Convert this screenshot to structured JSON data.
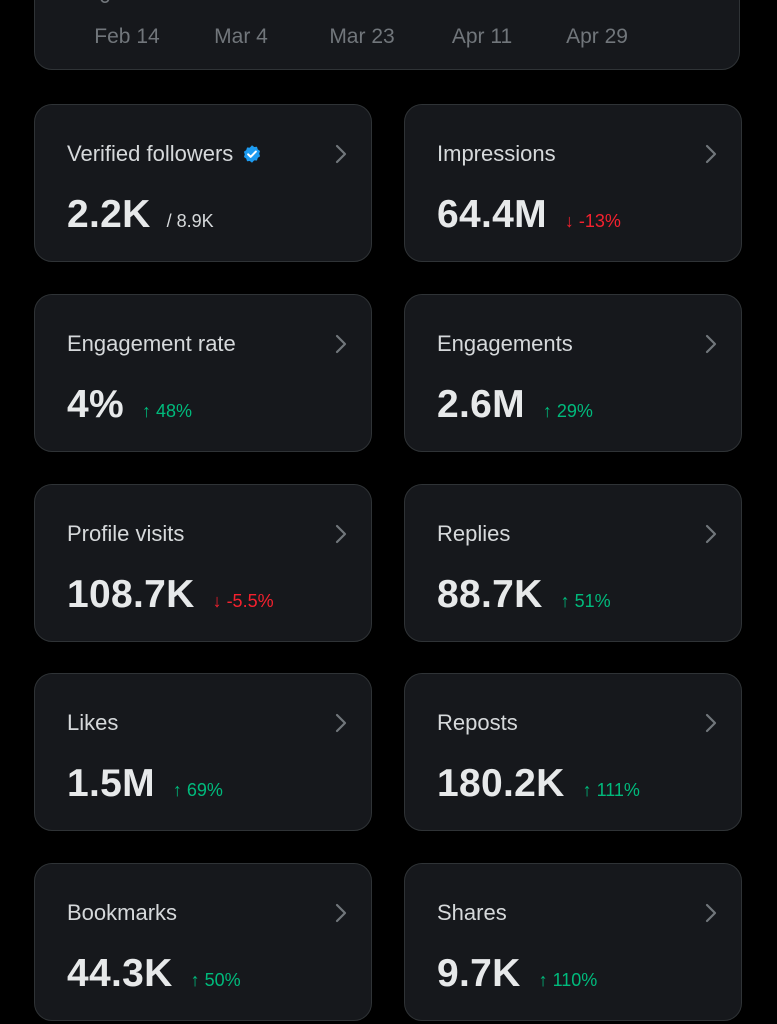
{
  "colors": {
    "background": "#000000",
    "card": "#16181c",
    "border": "#2f3336",
    "up": "#00ba7c",
    "down": "#f4212e",
    "verified": "#1d9bf0",
    "chart_line": "#1d9bf0"
  },
  "chart": {
    "y_tick": "0",
    "x_ticks": [
      "Feb 14",
      "Mar 4",
      "Mar 23",
      "Apr 11",
      "Apr 29"
    ]
  },
  "stats": [
    {
      "label": "Verified followers",
      "value": "2.2K",
      "sub": "/ 8.9K",
      "change": "",
      "direction": "",
      "verified": true
    },
    {
      "label": "Impressions",
      "value": "64.4M",
      "sub": "",
      "change": "↓ -13%",
      "direction": "down"
    },
    {
      "label": "Engagement rate",
      "value": "4%",
      "sub": "",
      "change": "↑ 48%",
      "direction": "up"
    },
    {
      "label": "Engagements",
      "value": "2.6M",
      "sub": "",
      "change": "↑ 29%",
      "direction": "up"
    },
    {
      "label": "Profile visits",
      "value": "108.7K",
      "sub": "",
      "change": "↓ -5.5%",
      "direction": "down"
    },
    {
      "label": "Replies",
      "value": "88.7K",
      "sub": "",
      "change": "↑ 51%",
      "direction": "up"
    },
    {
      "label": "Likes",
      "value": "1.5M",
      "sub": "",
      "change": "↑ 69%",
      "direction": "up"
    },
    {
      "label": "Reposts",
      "value": "180.2K",
      "sub": "",
      "change": "↑ 111%",
      "direction": "up"
    },
    {
      "label": "Bookmarks",
      "value": "44.3K",
      "sub": "",
      "change": "↑ 50%",
      "direction": "up"
    },
    {
      "label": "Shares",
      "value": "9.7K",
      "sub": "",
      "change": "↑ 110%",
      "direction": "up"
    }
  ],
  "icons": {
    "chevron": "chevron-right-icon",
    "verified": "verified-badge-icon"
  }
}
